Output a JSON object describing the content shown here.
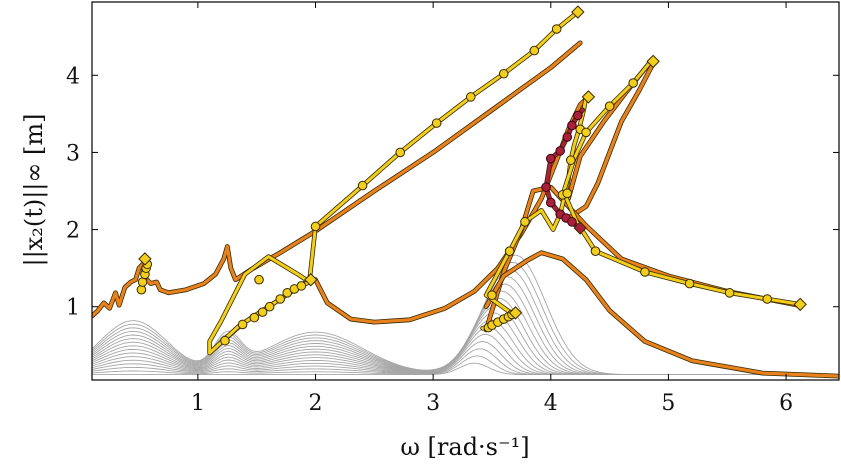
{
  "chart_data": {
    "type": "line",
    "xlabel": "ω [rad·s⁻¹]",
    "ylabel": "||x₂(t)||∞ [m]",
    "xlim": [
      0.1,
      6.45
    ],
    "ylim": [
      0.05,
      4.95
    ],
    "xticks": [
      1,
      2,
      3,
      4,
      5,
      6
    ],
    "yticks": [
      1,
      2,
      3,
      4
    ],
    "grid": false,
    "colors": {
      "envelope": "#e8821e",
      "continuation": "#f2cf1c",
      "unstable": "#a8203a",
      "background": "#a6a6a6",
      "marker_stroke": "#3a2a00"
    },
    "series": [
      {
        "role": "envelope-low-frequency",
        "points": [
          [
            0.1,
            0.88
          ],
          [
            0.15,
            0.95
          ],
          [
            0.2,
            1.05
          ],
          [
            0.25,
            0.98
          ],
          [
            0.3,
            1.18
          ],
          [
            0.33,
            1.02
          ],
          [
            0.38,
            1.25
          ],
          [
            0.43,
            1.32
          ],
          [
            0.47,
            1.35
          ],
          [
            0.5,
            1.5
          ],
          [
            0.53,
            1.55
          ],
          [
            0.55,
            1.38
          ],
          [
            0.6,
            1.3
          ],
          [
            0.65,
            1.32
          ],
          [
            0.68,
            1.22
          ],
          [
            0.75,
            1.18
          ],
          [
            0.9,
            1.22
          ],
          [
            1.05,
            1.3
          ],
          [
            1.15,
            1.42
          ],
          [
            1.22,
            1.62
          ],
          [
            1.25,
            1.78
          ],
          [
            1.28,
            1.5
          ],
          [
            1.32,
            1.35
          ],
          [
            1.45,
            1.48
          ],
          [
            1.7,
            1.7
          ],
          [
            2.0,
            1.98
          ],
          [
            2.5,
            2.5
          ],
          [
            3.0,
            3.0
          ],
          [
            3.5,
            3.55
          ],
          [
            4.0,
            4.1
          ],
          [
            4.25,
            4.42
          ]
        ]
      },
      {
        "role": "envelope-main-valley",
        "points": [
          [
            2.0,
            1.35
          ],
          [
            2.1,
            1.05
          ],
          [
            2.3,
            0.84
          ],
          [
            2.5,
            0.8
          ],
          [
            2.8,
            0.83
          ],
          [
            3.1,
            0.98
          ],
          [
            3.35,
            1.2
          ],
          [
            3.55,
            1.5
          ],
          [
            3.75,
            1.95
          ],
          [
            3.92,
            2.4
          ],
          [
            4.05,
            2.9
          ],
          [
            4.15,
            3.3
          ],
          [
            4.25,
            3.62
          ],
          [
            4.32,
            3.72
          ]
        ]
      },
      {
        "role": "envelope-right-arm",
        "points": [
          [
            4.15,
            2.4
          ],
          [
            4.25,
            2.95
          ],
          [
            4.45,
            3.4
          ],
          [
            4.65,
            3.8
          ],
          [
            4.85,
            4.18
          ]
        ]
      },
      {
        "role": "envelope-right-branch",
        "points": [
          [
            4.15,
            2.15
          ],
          [
            4.3,
            2.3
          ],
          [
            4.4,
            2.6
          ],
          [
            4.5,
            3.0
          ],
          [
            4.6,
            3.4
          ],
          [
            4.75,
            3.8
          ],
          [
            4.88,
            4.18
          ]
        ]
      },
      {
        "role": "envelope-lower-branch",
        "points": [
          [
            3.45,
            0.7
          ],
          [
            3.6,
            1.45
          ],
          [
            3.75,
            2.0
          ],
          [
            3.85,
            2.5
          ],
          [
            4.0,
            2.55
          ],
          [
            4.3,
            2.05
          ],
          [
            4.6,
            1.62
          ],
          [
            5.0,
            1.4
          ],
          [
            5.5,
            1.2
          ],
          [
            6.1,
            1.02
          ]
        ]
      },
      {
        "role": "envelope-bottom",
        "points": [
          [
            3.45,
            1.0
          ],
          [
            3.6,
            1.4
          ],
          [
            3.8,
            1.6
          ],
          [
            3.92,
            1.7
          ],
          [
            4.1,
            1.62
          ],
          [
            4.3,
            1.35
          ],
          [
            4.5,
            0.95
          ],
          [
            4.8,
            0.55
          ],
          [
            5.2,
            0.3
          ],
          [
            5.8,
            0.14
          ],
          [
            6.45,
            0.1
          ]
        ]
      },
      {
        "role": "continuation-top-line",
        "points": [
          [
            1.23,
            0.58
          ],
          [
            1.38,
            0.78
          ],
          [
            1.52,
            0.92
          ],
          [
            1.72,
            1.12
          ],
          [
            1.95,
            1.35
          ],
          [
            2.0,
            2.04
          ],
          [
            2.4,
            2.57
          ],
          [
            2.72,
            3.0
          ],
          [
            3.03,
            3.38
          ],
          [
            3.32,
            3.72
          ],
          [
            3.6,
            4.02
          ],
          [
            3.86,
            4.32
          ],
          [
            4.05,
            4.6
          ],
          [
            4.23,
            4.82
          ]
        ]
      },
      {
        "role": "continuation-loop",
        "points": [
          [
            1.1,
            0.4
          ],
          [
            1.35,
            0.75
          ],
          [
            1.6,
            1.0
          ],
          [
            1.85,
            1.25
          ],
          [
            1.95,
            1.32
          ],
          [
            1.85,
            1.42
          ],
          [
            1.6,
            1.65
          ],
          [
            1.4,
            1.42
          ],
          [
            1.2,
            0.82
          ],
          [
            1.1,
            0.55
          ],
          [
            1.1,
            0.4
          ]
        ]
      },
      {
        "role": "continuation-low-peak",
        "points": [
          [
            0.52,
            1.22
          ],
          [
            0.55,
            1.35
          ],
          [
            0.56,
            1.45
          ],
          [
            0.57,
            1.55
          ],
          [
            0.55,
            1.62
          ]
        ]
      },
      {
        "role": "continuation-valley-line",
        "points": [
          [
            3.42,
            0.72
          ],
          [
            3.48,
            0.75
          ],
          [
            3.55,
            0.78
          ],
          [
            3.62,
            0.83
          ],
          [
            3.68,
            0.9
          ],
          [
            3.45,
            1.15
          ],
          [
            3.65,
            1.72
          ],
          [
            3.78,
            2.1
          ],
          [
            3.92,
            2.25
          ],
          [
            4.02,
            2.0
          ],
          [
            4.08,
            2.2
          ],
          [
            4.12,
            2.45
          ],
          [
            4.15,
            2.65
          ],
          [
            4.17,
            2.9
          ],
          [
            4.2,
            3.1
          ],
          [
            4.24,
            3.3
          ],
          [
            4.28,
            3.55
          ],
          [
            4.3,
            3.72
          ]
        ]
      },
      {
        "role": "continuation-right-arm",
        "points": [
          [
            4.1,
            2.45
          ],
          [
            4.2,
            2.92
          ],
          [
            4.3,
            3.26
          ],
          [
            4.5,
            3.6
          ],
          [
            4.7,
            3.9
          ],
          [
            4.85,
            4.18
          ]
        ]
      },
      {
        "role": "continuation-lower-right",
        "points": [
          [
            4.12,
            2.45
          ],
          [
            4.22,
            2.1
          ],
          [
            4.38,
            1.72
          ],
          [
            4.8,
            1.45
          ],
          [
            5.18,
            1.3
          ],
          [
            5.52,
            1.18
          ],
          [
            5.84,
            1.1
          ],
          [
            6.12,
            1.03
          ]
        ]
      },
      {
        "role": "unstable-branch",
        "points": [
          [
            4.27,
            3.55
          ],
          [
            4.23,
            3.48
          ],
          [
            4.18,
            3.35
          ],
          [
            4.14,
            3.2
          ],
          [
            4.08,
            3.02
          ],
          [
            4.0,
            2.92
          ],
          [
            3.96,
            2.55
          ],
          [
            4.0,
            2.35
          ],
          [
            4.08,
            2.2
          ],
          [
            4.13,
            2.15
          ],
          [
            4.18,
            2.1
          ],
          [
            4.24,
            2.02
          ]
        ]
      }
    ],
    "markers": {
      "circles": [
        [
          0.52,
          1.22
        ],
        [
          0.53,
          1.32
        ],
        [
          0.55,
          1.42
        ],
        [
          0.56,
          1.5
        ],
        [
          0.57,
          1.55
        ],
        [
          1.23,
          0.56
        ],
        [
          1.38,
          0.77
        ],
        [
          1.48,
          0.86
        ],
        [
          1.55,
          0.93
        ],
        [
          1.61,
          1.0
        ],
        [
          1.7,
          1.1
        ],
        [
          1.76,
          1.18
        ],
        [
          1.82,
          1.23
        ],
        [
          1.88,
          1.27
        ],
        [
          1.52,
          1.35
        ],
        [
          2.0,
          2.04
        ],
        [
          2.4,
          2.57
        ],
        [
          2.72,
          3.0
        ],
        [
          3.03,
          3.38
        ],
        [
          3.32,
          3.72
        ],
        [
          3.6,
          4.02
        ],
        [
          3.86,
          4.32
        ],
        [
          4.05,
          4.6
        ],
        [
          3.47,
          0.73
        ],
        [
          3.5,
          0.76
        ],
        [
          3.55,
          0.8
        ],
        [
          3.6,
          0.84
        ],
        [
          3.64,
          0.87
        ],
        [
          3.67,
          0.9
        ],
        [
          3.5,
          1.15
        ],
        [
          3.65,
          1.72
        ],
        [
          3.78,
          2.1
        ],
        [
          4.1,
          2.45
        ],
        [
          4.14,
          2.47
        ],
        [
          4.17,
          2.9
        ],
        [
          4.25,
          3.3
        ],
        [
          4.3,
          3.26
        ],
        [
          4.5,
          3.6
        ],
        [
          4.7,
          3.9
        ],
        [
          4.38,
          1.72
        ],
        [
          4.8,
          1.45
        ],
        [
          5.18,
          1.3
        ],
        [
          5.52,
          1.18
        ],
        [
          5.84,
          1.1
        ]
      ],
      "diamonds": [
        [
          0.55,
          1.62
        ],
        [
          1.96,
          1.35
        ],
        [
          3.7,
          0.92
        ],
        [
          4.23,
          4.82
        ],
        [
          4.32,
          3.72
        ],
        [
          4.87,
          4.18
        ],
        [
          6.12,
          1.03
        ]
      ],
      "unstable_circles": [
        [
          4.23,
          3.48
        ],
        [
          4.18,
          3.35
        ],
        [
          4.14,
          3.2
        ],
        [
          4.08,
          3.02
        ],
        [
          4.0,
          2.92
        ],
        [
          3.96,
          2.55
        ],
        [
          4.0,
          2.35
        ],
        [
          4.08,
          2.2
        ],
        [
          4.13,
          2.15
        ],
        [
          4.18,
          2.1
        ]
      ],
      "unstable_diamond": [
        [
          4.25,
          2.02
        ]
      ]
    }
  }
}
